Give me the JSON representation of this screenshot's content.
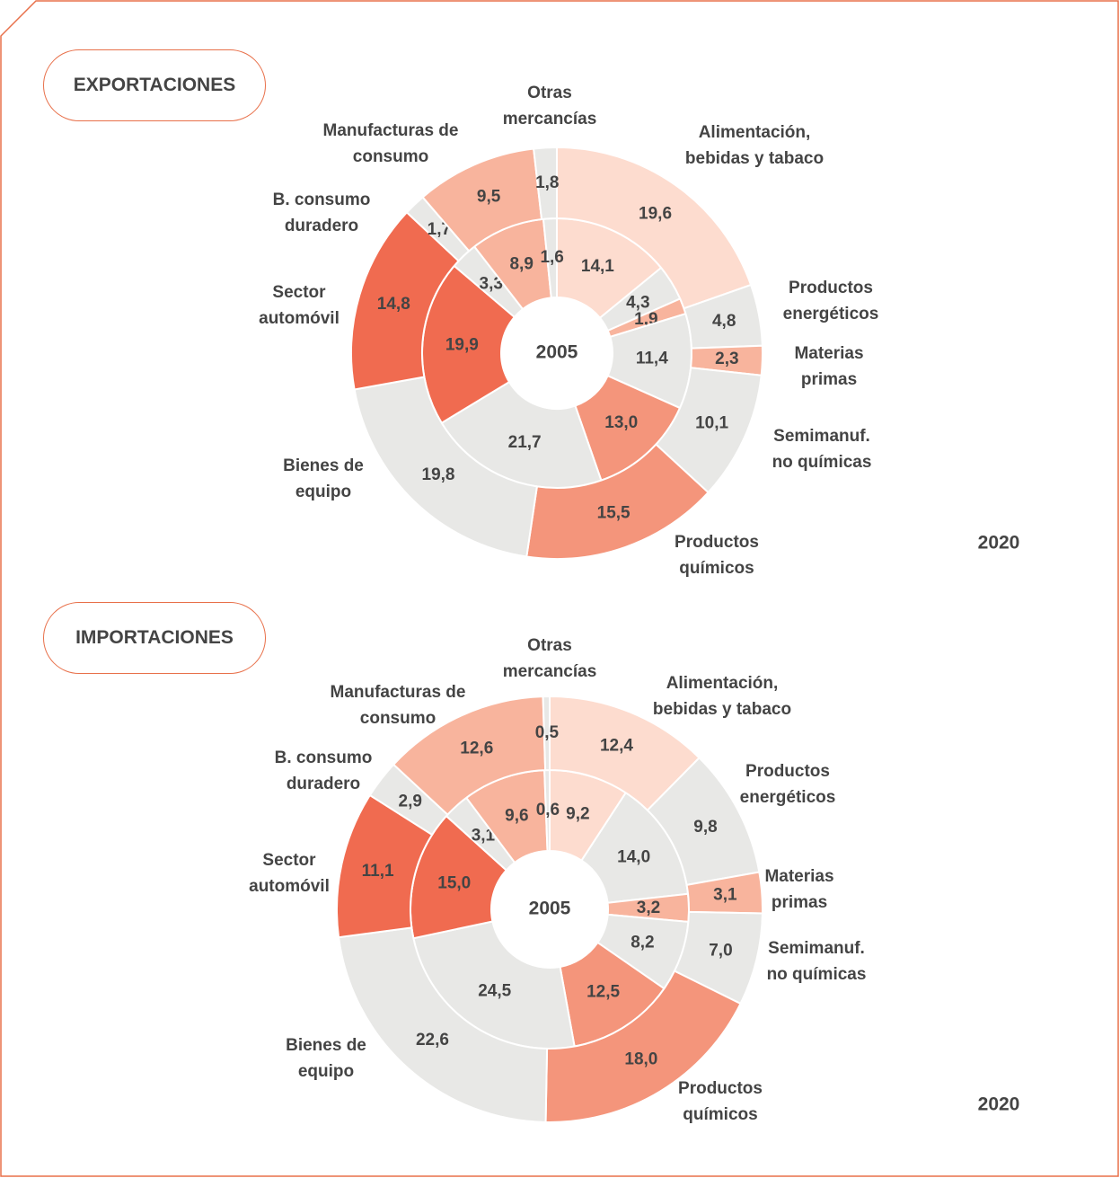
{
  "chart_data": [
    {
      "type": "donut",
      "title": "EXPORTACIONES",
      "categories": [
        "Alimentación, bebidas y tabaco",
        "Productos energéticos",
        "Materias primas",
        "Semimanuf. no químicas",
        "Productos químicos",
        "Bienes de equipo",
        "Sector automóvil",
        "B. consumo duradero",
        "Manufacturas de consumo",
        "Otras mercancías"
      ],
      "colors": [
        "#fddccf",
        "#e8e8e6",
        "#f8b49d",
        "#e8e8e6",
        "#f4957b",
        "#e8e8e6",
        "#f06b50",
        "#e8e8e6",
        "#f8b49d",
        "#e8e8e6"
      ],
      "series": [
        {
          "name": "2005",
          "values": [
            14.1,
            4.3,
            1.9,
            11.4,
            13.0,
            21.7,
            19.9,
            3.3,
            8.9,
            1.6
          ],
          "value_labels": [
            "14,1",
            "4,3",
            "1,9",
            "11,4",
            "13,0",
            "21,7",
            "19,9",
            "3,3",
            "8,9",
            "1,6"
          ]
        },
        {
          "name": "2020",
          "values": [
            19.6,
            4.8,
            2.3,
            10.1,
            15.5,
            19.8,
            14.8,
            1.7,
            9.5,
            1.8
          ],
          "value_labels": [
            "19,6",
            "4,8",
            "2,3",
            "10,1",
            "15,5",
            "19,8",
            "14,8",
            "1,7",
            "9,5",
            "1,8"
          ]
        }
      ]
    },
    {
      "type": "donut",
      "title": "IMPORTACIONES",
      "categories": [
        "Alimentación, bebidas y tabaco",
        "Productos energéticos",
        "Materias primas",
        "Semimanuf. no químicas",
        "Productos químicos",
        "Bienes de equipo",
        "Sector automóvil",
        "B. consumo duradero",
        "Manufacturas de consumo",
        "Otras mercancías"
      ],
      "colors": [
        "#fddccf",
        "#e8e8e6",
        "#f8b49d",
        "#e8e8e6",
        "#f4957b",
        "#e8e8e6",
        "#f06b50",
        "#e8e8e6",
        "#f8b49d",
        "#e8e8e6"
      ],
      "series": [
        {
          "name": "2005",
          "values": [
            9.2,
            14.0,
            3.2,
            8.2,
            12.5,
            24.5,
            15.0,
            3.1,
            9.6,
            0.6
          ],
          "value_labels": [
            "9,2",
            "14,0",
            "3,2",
            "8,2",
            "12,5",
            "24,5",
            "15,0",
            "3,1",
            "9,6",
            "0,6"
          ]
        },
        {
          "name": "2020",
          "values": [
            12.4,
            9.8,
            3.1,
            7.0,
            18.0,
            22.6,
            11.1,
            2.9,
            12.6,
            0.5
          ],
          "value_labels": [
            "12,4",
            "9,8",
            "3,1",
            "7,0",
            "18,0",
            "22,6",
            "11,1",
            "2,9",
            "12,6",
            "0,5"
          ]
        }
      ]
    }
  ]
}
